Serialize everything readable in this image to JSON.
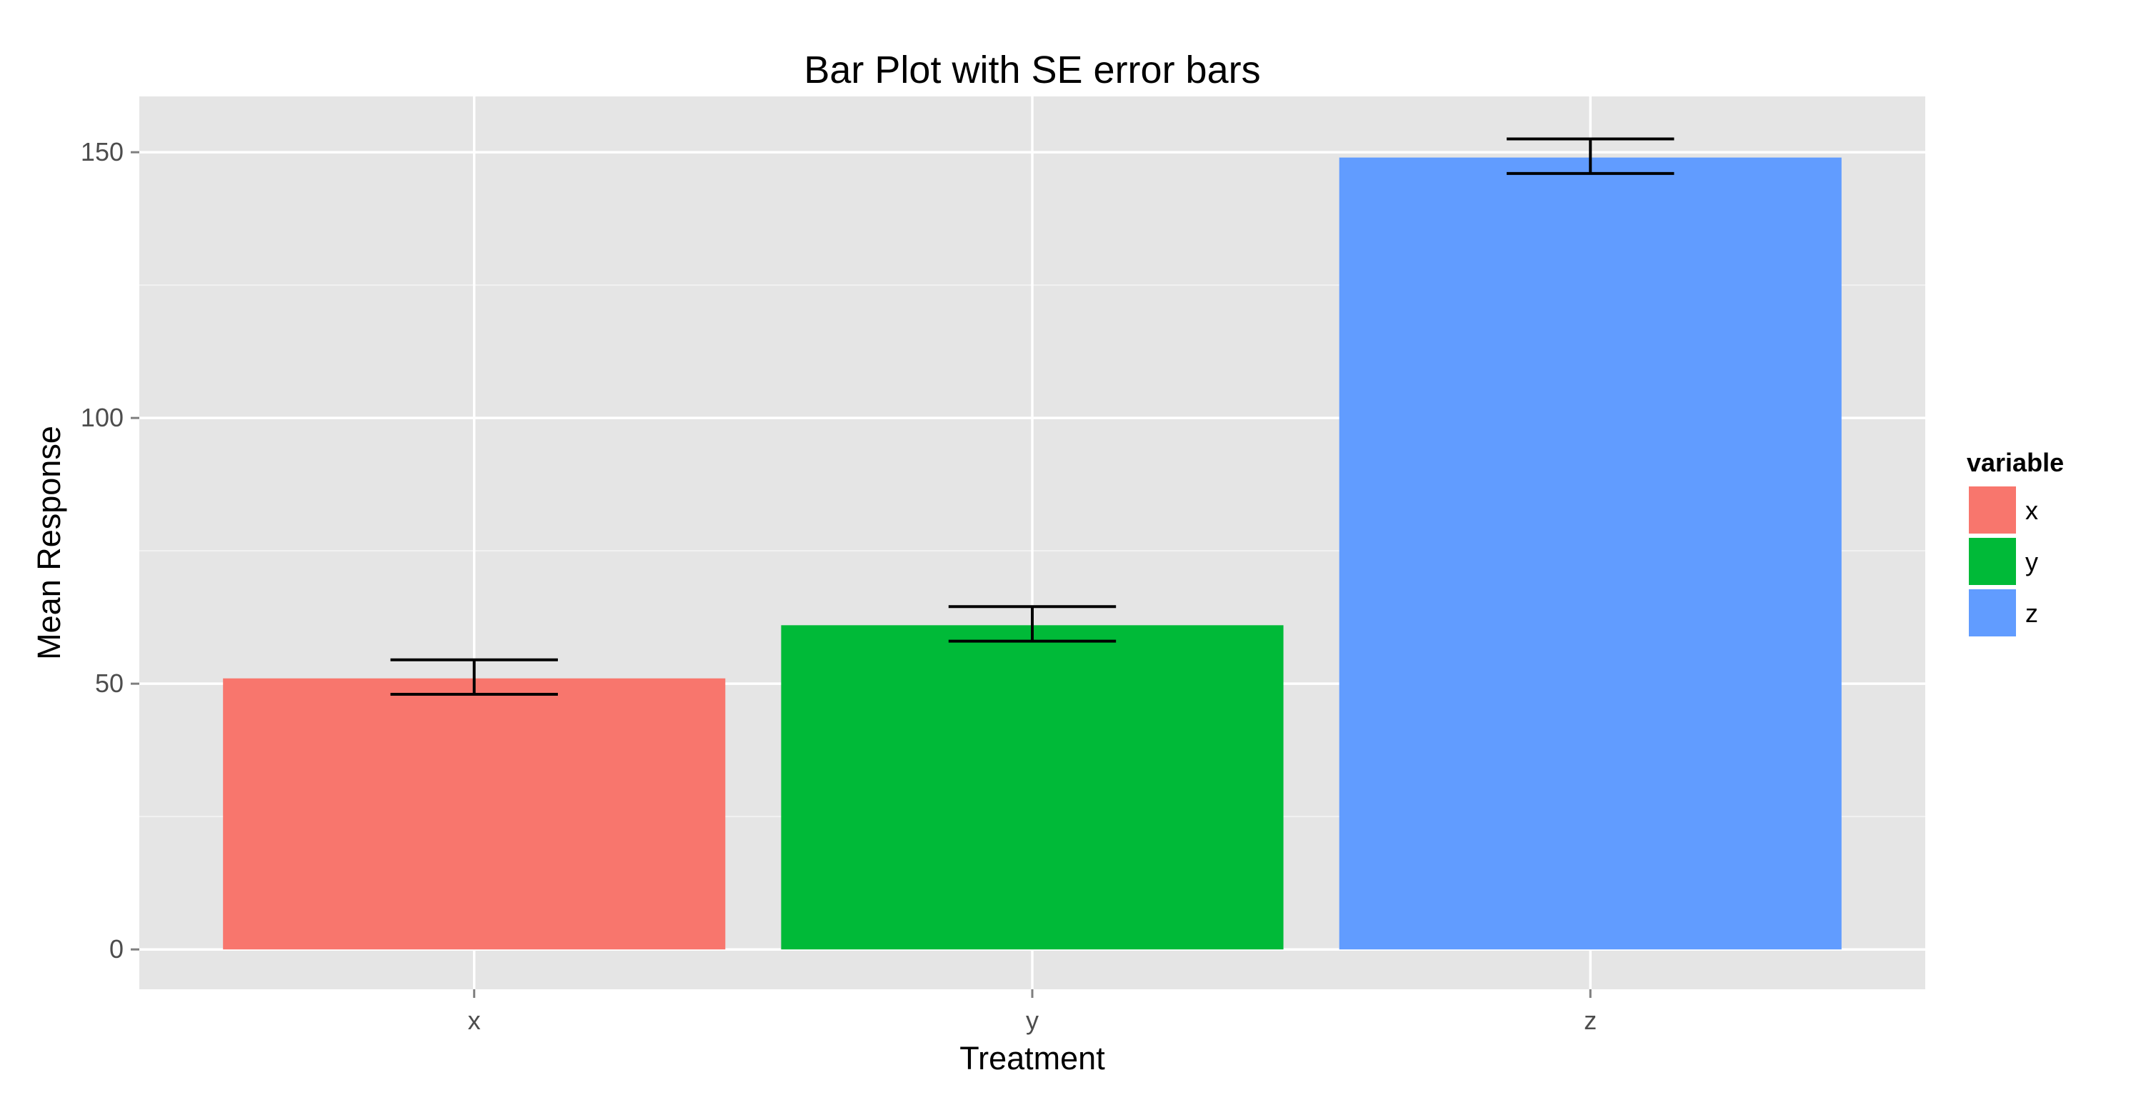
{
  "chart_data": {
    "type": "bar",
    "title": "Bar Plot with SE error bars",
    "xlabel": "Treatment",
    "ylabel": "Mean Response",
    "categories": [
      "x",
      "y",
      "z"
    ],
    "values": [
      51,
      61,
      149
    ],
    "error_bars": {
      "lower": [
        48,
        58,
        146
      ],
      "upper": [
        54.5,
        64.5,
        152.5
      ]
    },
    "colors": [
      "#F8766D",
      "#00BA38",
      "#619CFF"
    ],
    "ylim": [
      -7.5,
      160.5
    ],
    "yticks": [
      0,
      50,
      100,
      150
    ],
    "ytick_labels": [
      "0",
      "50",
      "100",
      "150"
    ],
    "grid": true,
    "panel_background": "#E5E5E5",
    "grid_color": "#FFFFFF",
    "legend": {
      "title": "variable",
      "position": "right",
      "items": [
        "x",
        "y",
        "z"
      ]
    }
  }
}
